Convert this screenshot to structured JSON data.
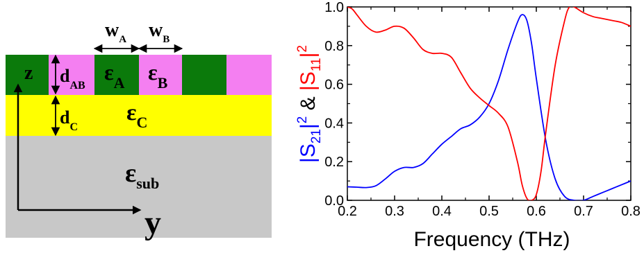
{
  "schematic": {
    "layers": [
      {
        "id": "grating",
        "label": "ε",
        "sub": "AB"
      },
      {
        "id": "C",
        "label": "ε",
        "sub": "C"
      },
      {
        "id": "substrate",
        "label": "ε",
        "sub": "sub"
      }
    ],
    "grating_labels": {
      "epsA": {
        "main": "ε",
        "sub": "A"
      },
      "epsB": {
        "main": "ε",
        "sub": "B"
      }
    },
    "widths": {
      "wA": {
        "main": "w",
        "sub": "A"
      },
      "wB": {
        "main": "w",
        "sub": "B"
      }
    },
    "thickness": {
      "dAB": {
        "main": "d",
        "sub": "AB"
      },
      "dC": {
        "main": "d",
        "sub": "C"
      }
    },
    "axes": {
      "z": "z",
      "y": "y"
    },
    "colors": {
      "material_A": "#0b7a0b",
      "material_B": "#f47ff1",
      "layer_C": "#ffff00",
      "substrate": "#c8c8c8"
    }
  },
  "chart_data": {
    "type": "line",
    "xlabel": "Frequency (THz)",
    "ylabel_parts": {
      "s21": {
        "text": "|S",
        "sub": "21",
        "tail": "|",
        "sup": "2",
        "color": "#0000ff"
      },
      "amp": {
        "text": " & ",
        "color": "#000000"
      },
      "s11": {
        "text": "|S",
        "sub": "11",
        "tail": "|",
        "sup": "2",
        "color": "#ff0000"
      }
    },
    "xlim": [
      0.2,
      0.8
    ],
    "ylim": [
      0.0,
      1.0
    ],
    "xticks": [
      "0.2",
      "0.3",
      "0.4",
      "0.5",
      "0.6",
      "0.7",
      "0.8"
    ],
    "yticks": [
      "0.0",
      "0.2",
      "0.4",
      "0.6",
      "0.8",
      "1.0"
    ],
    "grid": false,
    "series": [
      {
        "name": "|S21|^2",
        "color": "#0000ff",
        "x": [
          0.2,
          0.22,
          0.24,
          0.26,
          0.28,
          0.3,
          0.32,
          0.34,
          0.36,
          0.38,
          0.4,
          0.42,
          0.44,
          0.46,
          0.48,
          0.5,
          0.52,
          0.54,
          0.56,
          0.57,
          0.58,
          0.59,
          0.6,
          0.62,
          0.64,
          0.66,
          0.68,
          0.7,
          0.72,
          0.74,
          0.76,
          0.78,
          0.8
        ],
        "y": [
          0.07,
          0.068,
          0.066,
          0.075,
          0.11,
          0.15,
          0.17,
          0.17,
          0.19,
          0.24,
          0.29,
          0.33,
          0.37,
          0.39,
          0.43,
          0.5,
          0.62,
          0.78,
          0.92,
          0.96,
          0.93,
          0.81,
          0.63,
          0.31,
          0.11,
          0.02,
          0.0,
          0.0,
          0.02,
          0.04,
          0.06,
          0.08,
          0.1
        ]
      },
      {
        "name": "|S11|^2",
        "color": "#ff0000",
        "x": [
          0.2,
          0.21,
          0.22,
          0.24,
          0.26,
          0.28,
          0.3,
          0.32,
          0.34,
          0.36,
          0.38,
          0.4,
          0.42,
          0.44,
          0.46,
          0.48,
          0.5,
          0.52,
          0.54,
          0.56,
          0.57,
          0.58,
          0.59,
          0.6,
          0.61,
          0.62,
          0.64,
          0.66,
          0.67,
          0.68,
          0.7,
          0.72,
          0.74,
          0.76,
          0.78,
          0.8
        ],
        "y": [
          1.0,
          0.99,
          0.96,
          0.9,
          0.87,
          0.88,
          0.9,
          0.89,
          0.84,
          0.78,
          0.76,
          0.76,
          0.74,
          0.66,
          0.58,
          0.53,
          0.49,
          0.45,
          0.38,
          0.2,
          0.08,
          0.01,
          0.0,
          0.03,
          0.15,
          0.35,
          0.7,
          0.93,
          1.0,
          1.0,
          0.97,
          0.95,
          0.94,
          0.93,
          0.92,
          0.9
        ]
      }
    ]
  }
}
